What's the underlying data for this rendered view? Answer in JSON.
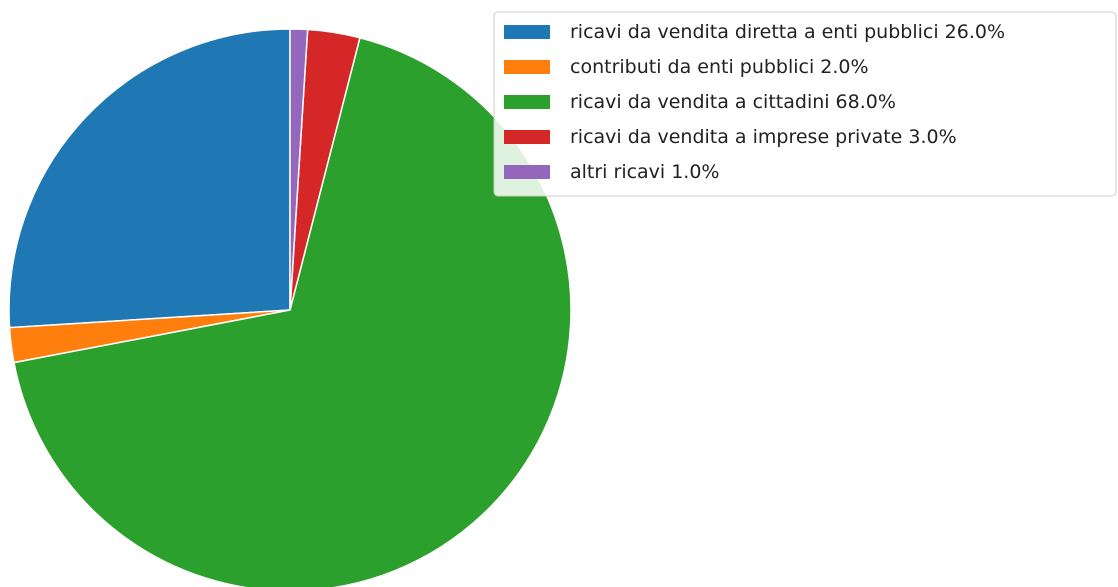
{
  "chart_data": {
    "type": "pie",
    "categories": [
      "ricavi da vendita diretta a enti pubblici",
      "contributi da enti pubblici",
      "ricavi da vendita a cittadini",
      "ricavi da vendita a imprese private",
      "altri ricavi"
    ],
    "values": [
      26,
      2,
      68,
      3,
      1
    ],
    "value_labels": [
      "26.0%",
      "2.0%",
      "68.0%",
      "3.0%",
      "1.0%"
    ],
    "colors": [
      "#1f77b4",
      "#ff7f0e",
      "#2ca02c",
      "#d62728",
      "#9467bd"
    ],
    "start_angle": 90,
    "legend": "upper right"
  }
}
